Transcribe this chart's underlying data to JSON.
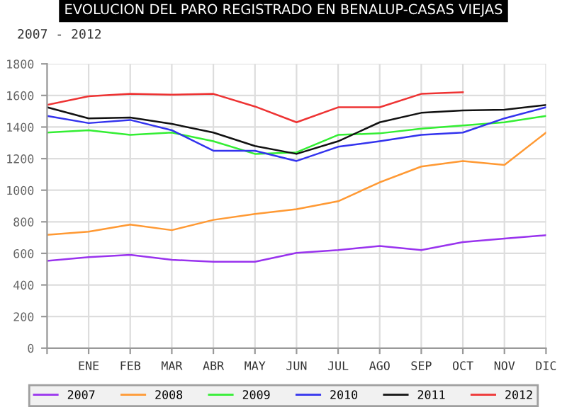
{
  "chart_data": {
    "type": "line",
    "title": "EVOLUCION DEL PARO REGISTRADO EN BENALUP-CASAS VIEJAS",
    "subtitle": "2007 - 2012",
    "categories": [
      null,
      "ENE",
      "FEB",
      "MAR",
      "ABR",
      "MAY",
      "JUN",
      "JUL",
      "AGO",
      "SEP",
      "OCT",
      "NOV",
      "DIC"
    ],
    "series": [
      {
        "name": "2007",
        "color": "#9933ee",
        "values": [
          553,
          576,
          591,
          559,
          547,
          547,
          603,
          621,
          647,
          621,
          671,
          694,
          715
        ]
      },
      {
        "name": "2008",
        "color": "#ff9933",
        "values": [
          717,
          738,
          782,
          747,
          812,
          850,
          880,
          930,
          1050,
          1150,
          1185,
          1160,
          1365
        ]
      },
      {
        "name": "2009",
        "color": "#33ee33",
        "values": [
          1365,
          1380,
          1350,
          1365,
          1310,
          1230,
          1240,
          1350,
          1360,
          1390,
          1410,
          1430,
          1470
        ]
      },
      {
        "name": "2010",
        "color": "#3333ee",
        "values": [
          1470,
          1425,
          1445,
          1380,
          1250,
          1250,
          1185,
          1275,
          1310,
          1350,
          1365,
          1455,
          1525
        ]
      },
      {
        "name": "2011",
        "color": "#111111",
        "values": [
          1525,
          1455,
          1460,
          1420,
          1365,
          1280,
          1230,
          1310,
          1430,
          1490,
          1505,
          1510,
          1540
        ]
      },
      {
        "name": "2012",
        "color": "#ee3333",
        "values": [
          1540,
          1595,
          1610,
          1605,
          1610,
          1530,
          1430,
          1525,
          1525,
          1610,
          1620,
          null,
          null
        ]
      }
    ],
    "ylim": [
      0,
      1800
    ],
    "yticks": [
      0,
      200,
      400,
      600,
      800,
      1000,
      1200,
      1400,
      1600,
      1800
    ],
    "grid": true,
    "legend": "bottom",
    "marker": "none",
    "line_style": "solid"
  }
}
